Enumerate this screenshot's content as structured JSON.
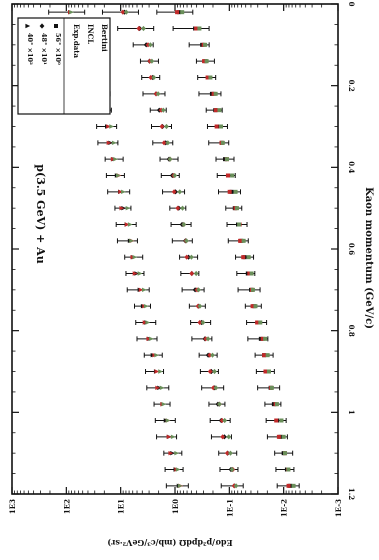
{
  "chart_data": {
    "type": "scatter",
    "title": "p(3.5 GeV) + Au",
    "xlabel": "Kaon momentum (GeV/c)",
    "ylabel": "Edσ/p²dpdΩ (mb/c³/GeV²·sr)",
    "x_ticks": [
      "0",
      "0.2",
      "0.4",
      "0.6",
      "0.8",
      "1",
      "1.2"
    ],
    "y_ticks": [
      "1E3",
      "1E2",
      "1E1",
      "1E0",
      "1E-1",
      "1E-2",
      "1E-3"
    ],
    "x_range": [
      0,
      1.2
    ],
    "y_log_range": [
      -3,
      3
    ],
    "y_scale": "log",
    "orientation": "rotated 90 degrees clockwise",
    "legend": {
      "markers": [
        {
          "symbol": "triangle",
          "label": "40° ×10²"
        },
        {
          "symbol": "diamond",
          "label": "48° ×10¹"
        },
        {
          "symbol": "square",
          "label": "56° ×10⁰"
        }
      ],
      "models": [
        {
          "label": "Exp.data",
          "color": "#111111"
        },
        {
          "label": "INCL",
          "color": "#c22a2a"
        },
        {
          "label": "Bertini",
          "color": "#6a8f5a"
        }
      ],
      "placement": "top-right"
    },
    "colors": {
      "data": "#111111",
      "incl": "#c22a2a",
      "bertini": "#6a8f5a"
    },
    "series": [
      {
        "name": "40° ×10²",
        "x": [
          0.02,
          0.06,
          0.1,
          0.14,
          0.18,
          0.22,
          0.26,
          0.3,
          0.34,
          0.38,
          0.42,
          0.46,
          0.5,
          0.54,
          0.58,
          0.62,
          0.66,
          0.7,
          0.74,
          0.78,
          0.82,
          0.86,
          0.9,
          0.94,
          0.98,
          1.02,
          1.06,
          1.1,
          1.14,
          1.18
        ],
        "y_log": [
          1.92,
          1.66,
          1.55,
          1.48,
          1.42,
          1.36,
          1.3,
          1.24,
          1.18,
          1.12,
          1.06,
          1.0,
          0.94,
          0.88,
          0.82,
          0.76,
          0.7,
          0.64,
          0.58,
          0.52,
          0.46,
          0.4,
          0.34,
          0.28,
          0.22,
          0.16,
          0.1,
          0.04,
          -0.02,
          -0.08
        ]
      },
      {
        "name": "48° ×10¹",
        "x": [
          0.02,
          0.06,
          0.1,
          0.14,
          0.18,
          0.22,
          0.26,
          0.3,
          0.34,
          0.38,
          0.42,
          0.46,
          0.5,
          0.54,
          0.58,
          0.62,
          0.66,
          0.7,
          0.74,
          0.78,
          0.82,
          0.86,
          0.9,
          0.94,
          0.98,
          1.02,
          1.06,
          1.1,
          1.14,
          1.18
        ],
        "y_log": [
          0.93,
          0.65,
          0.53,
          0.47,
          0.41,
          0.35,
          0.29,
          0.23,
          0.17,
          0.11,
          0.05,
          -0.01,
          -0.07,
          -0.13,
          -0.19,
          -0.25,
          -0.31,
          -0.37,
          -0.43,
          -0.49,
          -0.55,
          -0.61,
          -0.67,
          -0.73,
          -0.79,
          -0.85,
          -0.91,
          -0.97,
          -1.03,
          -1.09
        ]
      },
      {
        "name": "56° ×10⁰",
        "x": [
          0.02,
          0.06,
          0.1,
          0.14,
          0.18,
          0.22,
          0.26,
          0.3,
          0.34,
          0.38,
          0.42,
          0.46,
          0.5,
          0.54,
          0.58,
          0.62,
          0.66,
          0.7,
          0.74,
          0.78,
          0.82,
          0.86,
          0.9,
          0.94,
          0.98,
          1.02,
          1.06,
          1.1,
          1.14,
          1.18
        ],
        "y_log": [
          -0.07,
          -0.37,
          -0.5,
          -0.56,
          -0.62,
          -0.68,
          -0.74,
          -0.8,
          -0.86,
          -0.92,
          -0.98,
          -1.04,
          -1.1,
          -1.16,
          -1.22,
          -1.28,
          -1.34,
          -1.4,
          -1.46,
          -1.52,
          -1.58,
          -1.64,
          -1.7,
          -1.76,
          -1.82,
          -1.88,
          -1.94,
          -2.0,
          -2.06,
          -2.12
        ]
      }
    ]
  }
}
